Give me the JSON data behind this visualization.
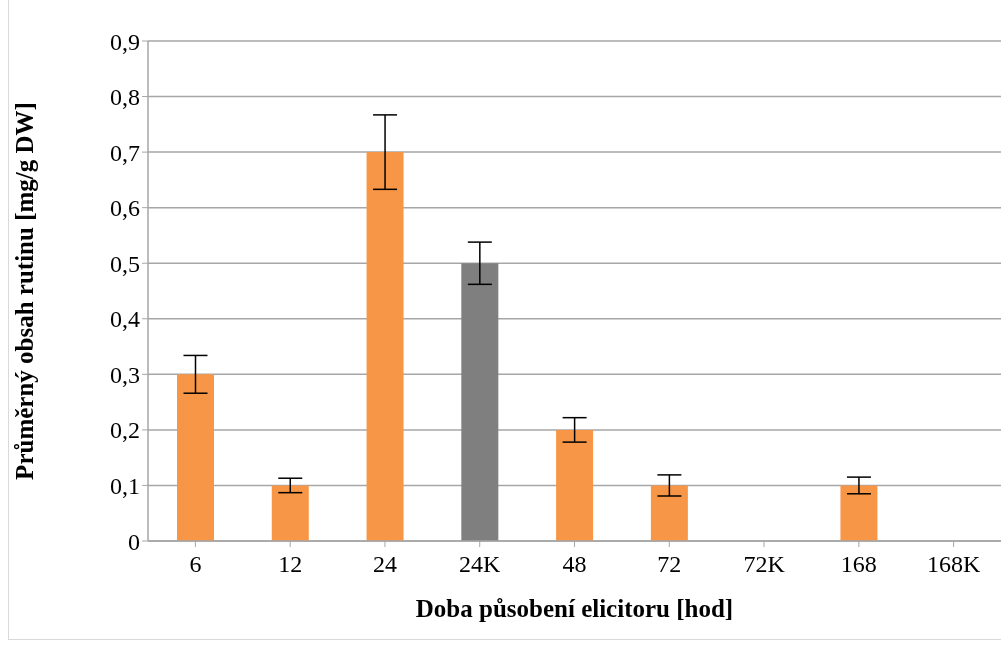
{
  "chart_data": {
    "type": "bar",
    "xlabel": "Doba působení elicitoru [hod]",
    "ylabel": "Průměrný obsah rutinu [mg/g DW]",
    "categories": [
      "6",
      "12",
      "24",
      "24K",
      "48",
      "72",
      "72K",
      "168",
      "168K"
    ],
    "values": [
      0.3,
      0.1,
      0.7,
      0.5,
      0.2,
      0.1,
      0,
      0.1,
      0
    ],
    "errors": [
      0.034,
      0.013,
      0.067,
      0.038,
      0.022,
      0.019,
      null,
      0.015,
      null
    ],
    "colors": [
      "#f79646",
      "#f79646",
      "#f79646",
      "#7f7f7f",
      "#f79646",
      "#f79646",
      "#f79646",
      "#f79646",
      "#f79646"
    ],
    "ylim": [
      0,
      0.9
    ],
    "yticks": [
      {
        "value": 0,
        "label": "0"
      },
      {
        "value": 0.1,
        "label": "0,1"
      },
      {
        "value": 0.2,
        "label": "0,2"
      },
      {
        "value": 0.3,
        "label": "0,3"
      },
      {
        "value": 0.4,
        "label": "0,4"
      },
      {
        "value": 0.5,
        "label": "0,5"
      },
      {
        "value": 0.6,
        "label": "0,6"
      },
      {
        "value": 0.7,
        "label": "0,7"
      },
      {
        "value": 0.8,
        "label": "0,8"
      },
      {
        "value": 0.9,
        "label": "0,9"
      }
    ],
    "grid": "y"
  }
}
